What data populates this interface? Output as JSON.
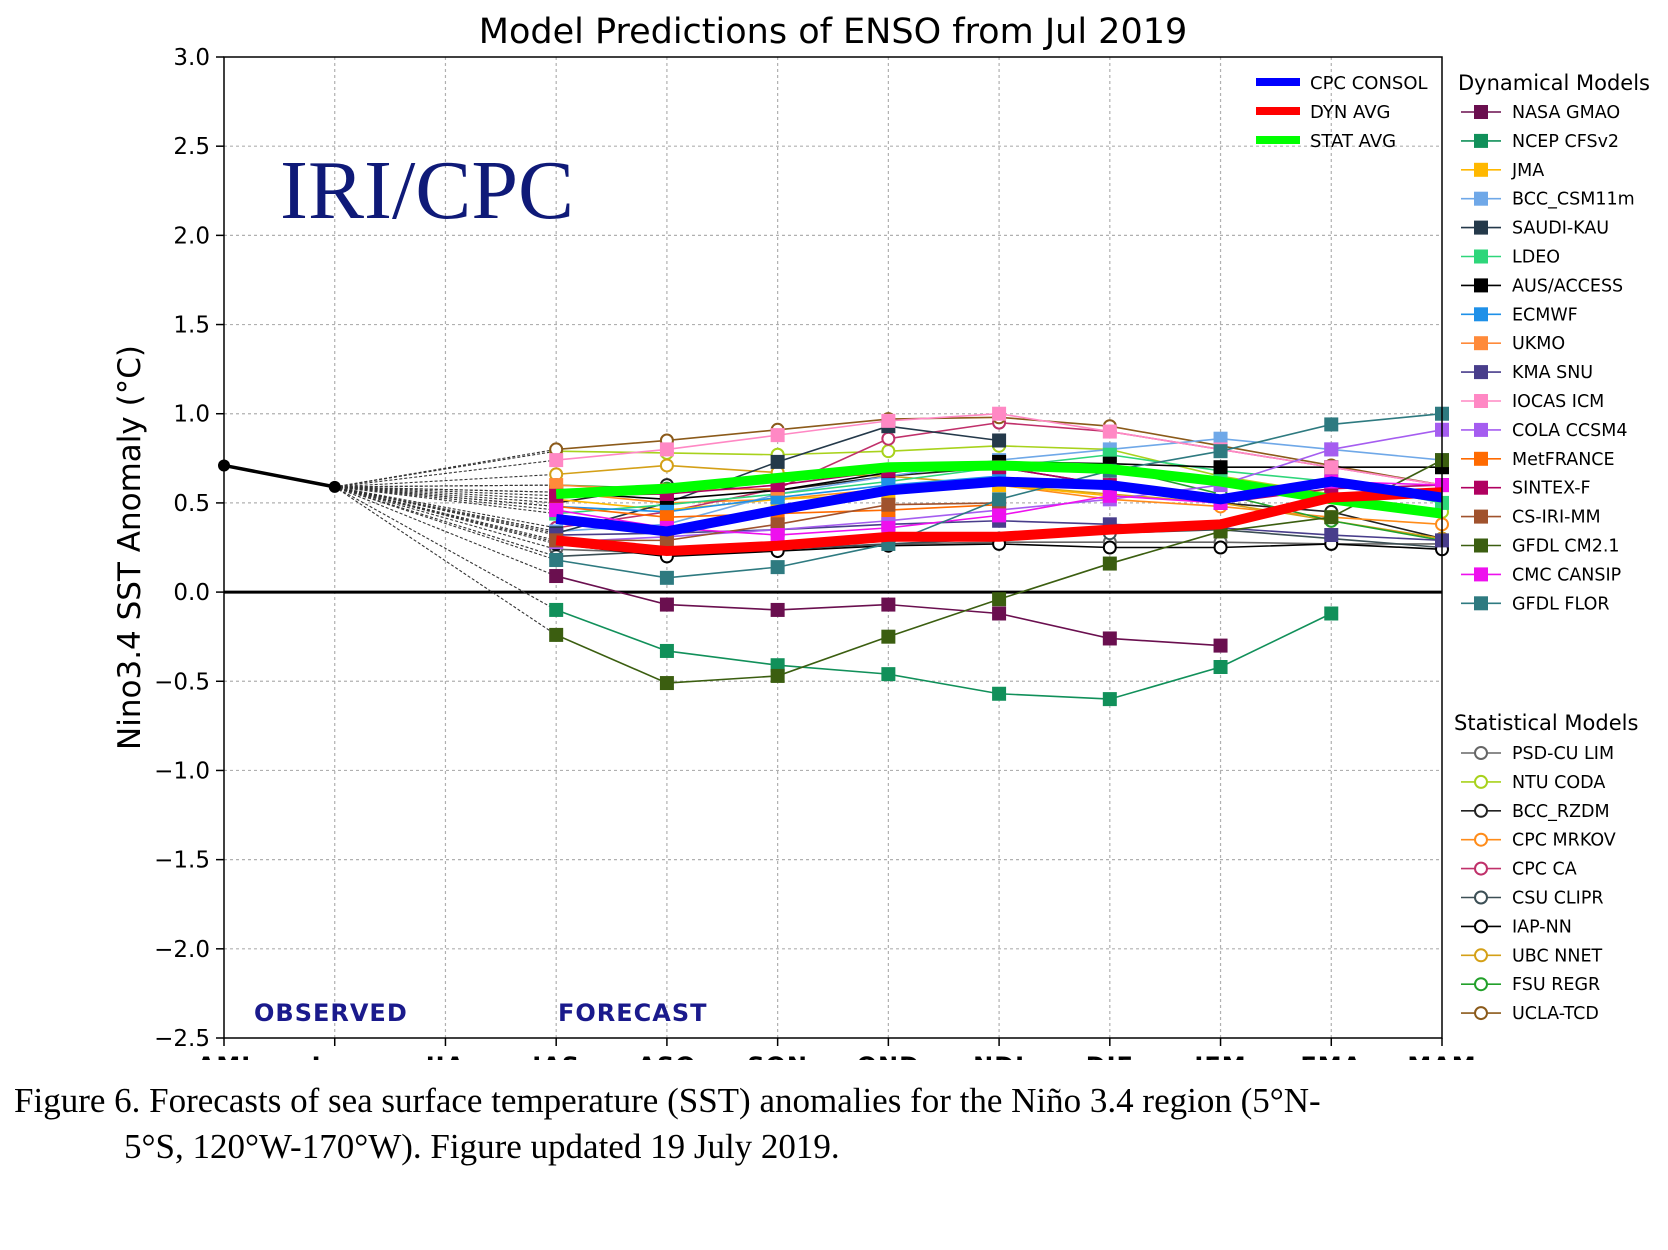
{
  "chart_data": {
    "type": "line",
    "title": "Model Predictions of ENSO from Jul 2019",
    "ylabel": "Nino3.4 SST Anomaly (°C)",
    "xlabel": "",
    "watermark": "IRI/CPC",
    "categories": [
      "AMJ",
      "Jun",
      "JJA",
      "JAS",
      "ASO",
      "SON",
      "OND",
      "NDJ",
      "DJF",
      "JFM",
      "FMA",
      "MAM"
    ],
    "ylim": [
      -2.5,
      3.0
    ],
    "yticks": [
      3.0,
      2.5,
      2.0,
      1.5,
      1.0,
      0.5,
      0.0,
      -0.5,
      -1.0,
      -1.5,
      -2.0,
      -2.5
    ],
    "ytick_labels": [
      "3.0",
      "2.5",
      "2.0",
      "1.5",
      "1.0",
      "0.5",
      "0.0",
      "−0.5",
      "−1.0",
      "−1.5",
      "−2.0",
      "−2.5"
    ],
    "grid": true,
    "observed_label": "OBSERVED",
    "forecast_label": "FORECAST",
    "observed": {
      "values": [
        0.71,
        0.59
      ]
    },
    "averages": [
      {
        "name": "CPC CONSOL",
        "color": "#0000ff",
        "values": [
          0.41,
          0.34,
          0.46,
          0.57,
          0.62,
          0.6,
          0.52,
          0.62,
          0.53
        ]
      },
      {
        "name": "DYN AVG",
        "color": "#ff0000",
        "values": [
          0.29,
          0.23,
          0.26,
          0.31,
          0.31,
          0.35,
          0.38,
          0.53,
          0.56
        ]
      },
      {
        "name": "STAT AVG",
        "color": "#00ff00",
        "values": [
          0.55,
          0.58,
          0.64,
          0.7,
          0.71,
          0.69,
          0.62,
          0.52,
          0.44
        ]
      }
    ],
    "dynamical_title": "Dynamical Models",
    "dynamical_models": [
      {
        "name": "NASA GMAO",
        "color": "#6a0f4f",
        "values": [
          0.09,
          -0.07,
          -0.1,
          -0.07,
          -0.12,
          -0.26,
          -0.3
        ]
      },
      {
        "name": "NCEP CFSv2",
        "color": "#11905a",
        "values": [
          -0.1,
          -0.33,
          -0.41,
          -0.46,
          -0.57,
          -0.6,
          -0.42,
          -0.12
        ]
      },
      {
        "name": "JMA",
        "color": "#ffb800",
        "values": [
          0.52,
          0.46,
          0.52,
          0.55,
          0.6,
          0.54
        ]
      },
      {
        "name": "BCC_CSM11m",
        "color": "#6fa8e8",
        "values": [
          0.34,
          0.38,
          0.55,
          0.65,
          0.74,
          0.8,
          0.86,
          0.8,
          0.74
        ]
      },
      {
        "name": "SAUDI-KAU",
        "color": "#24394a",
        "values": [
          0.33,
          0.5,
          0.73,
          0.93,
          0.85
        ]
      },
      {
        "name": "LDEO",
        "color": "#2ed67a",
        "values": [
          0.44,
          0.49,
          0.55,
          0.62,
          0.7,
          0.77,
          0.68,
          0.62,
          0.5
        ]
      },
      {
        "name": "AUS/ACCESS",
        "color": "#000000",
        "values": [
          0.56,
          0.52,
          0.57,
          0.67,
          0.73,
          0.72,
          0.7,
          0.7,
          0.7
        ]
      },
      {
        "name": "ECMWF",
        "color": "#1e90e8",
        "values": [
          0.48,
          0.45,
          0.53,
          0.6,
          0.65
        ]
      },
      {
        "name": "UKMO",
        "color": "#ff8a3a",
        "values": [
          0.6,
          0.57,
          0.58
        ]
      },
      {
        "name": "KMA SNU",
        "color": "#483d8b",
        "values": [
          0.32,
          0.33,
          0.35,
          0.38,
          0.4,
          0.38,
          0.36,
          0.32,
          0.29
        ]
      },
      {
        "name": "IOCAS ICM",
        "color": "#ff88c4",
        "values": [
          0.74,
          0.8,
          0.88,
          0.96,
          1.0,
          0.9,
          0.8,
          0.7,
          0.6
        ]
      },
      {
        "name": "COLA CCSM4",
        "color": "#a55df0",
        "values": [
          0.28,
          0.31,
          0.35,
          0.4,
          0.46,
          0.52,
          0.6,
          0.8,
          0.91
        ]
      },
      {
        "name": "MetFRANCE",
        "color": "#ff6a00",
        "values": [
          0.48,
          0.42,
          0.44,
          0.46,
          0.49
        ]
      },
      {
        "name": "SINTEX-F",
        "color": "#b00060",
        "values": [
          0.54,
          0.55,
          0.6,
          0.68,
          0.7,
          0.6,
          0.5,
          0.58,
          0.6
        ]
      },
      {
        "name": "CS-IRI-MM",
        "color": "#a0522d",
        "values": [
          0.29,
          0.29,
          0.38,
          0.49,
          0.5
        ]
      },
      {
        "name": "GFDL CM2.1",
        "color": "#3b5e10",
        "values": [
          -0.24,
          -0.51,
          -0.47,
          -0.25,
          -0.04,
          0.16,
          0.34,
          0.42,
          0.74
        ]
      },
      {
        "name": "CMC CANSIP",
        "color": "#ee10ee",
        "values": [
          0.46,
          0.36,
          0.32,
          0.36,
          0.43,
          0.54,
          0.5,
          0.62,
          0.6
        ]
      },
      {
        "name": "GFDL FLOR",
        "color": "#2e7a80",
        "values": [
          0.18,
          0.08,
          0.14,
          0.27,
          0.52,
          0.68,
          0.79,
          0.94,
          1.0
        ]
      }
    ],
    "statistical_title": "Statistical Models",
    "statistical_models": [
      {
        "name": "PSD-CU LIM",
        "color": "#666666",
        "values": [
          0.24,
          0.22,
          0.24,
          0.27,
          0.28,
          0.28,
          0.28,
          0.27,
          0.27
        ]
      },
      {
        "name": "NTU CODA",
        "color": "#a8d21c",
        "values": [
          0.79,
          0.78,
          0.77,
          0.79,
          0.82,
          0.8,
          0.65,
          0.55,
          0.45
        ]
      },
      {
        "name": "BCC_RZDM",
        "color": "#222222",
        "values": [
          0.5,
          0.6,
          0.57,
          0.65,
          0.7,
          0.6,
          0.5,
          0.45,
          0.3
        ]
      },
      {
        "name": "CPC MRKOV",
        "color": "#ff8c1a",
        "values": [
          0.56,
          0.5,
          0.52,
          0.58,
          0.6,
          0.52,
          0.48,
          0.42,
          0.38
        ]
      },
      {
        "name": "CPC CA",
        "color": "#c0306a",
        "values": [
          0.36,
          0.45,
          0.58,
          0.86,
          0.95,
          0.9,
          0.8,
          0.7,
          0.6
        ]
      },
      {
        "name": "CSU CLIPR",
        "color": "#3c4f55",
        "values": [
          0.2,
          0.23,
          0.24,
          0.27,
          0.3,
          0.33,
          0.35,
          0.3,
          0.25
        ]
      },
      {
        "name": "IAP-NN",
        "color": "#000000",
        "values": [
          0.27,
          0.2,
          0.23,
          0.26,
          0.27,
          0.25,
          0.25,
          0.27,
          0.24
        ]
      },
      {
        "name": "UBC NNET",
        "color": "#d4a017",
        "values": [
          0.66,
          0.71,
          0.67,
          0.65,
          0.6,
          0.55,
          0.5,
          0.4,
          0.3
        ]
      },
      {
        "name": "FSU REGR",
        "color": "#22a02a",
        "values": [
          0.6,
          0.58,
          0.62,
          0.68,
          0.72,
          0.7,
          0.55,
          0.4,
          0.29
        ]
      },
      {
        "name": "UCLA-TCD",
        "color": "#8b5a1a",
        "values": [
          0.8,
          0.85,
          0.91,
          0.97,
          0.98,
          0.93,
          0.82,
          0.71,
          0.6
        ]
      }
    ]
  },
  "caption": {
    "line1": "Figure 6. Forecasts of sea surface temperature (SST) anomalies for the Niño 3.4 region (5°N-",
    "line2": "5°S, 120°W-170°W). Figure updated 19 July 2019."
  }
}
